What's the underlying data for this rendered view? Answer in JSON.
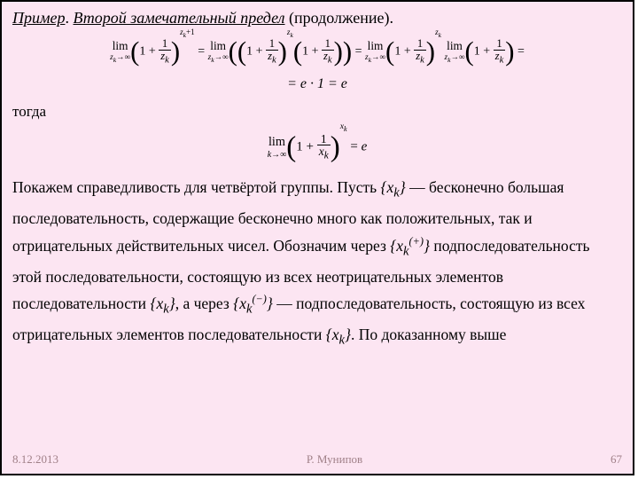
{
  "title": {
    "part1": "Пример",
    "dot": ". ",
    "part2": "Второй замечательный предел",
    "tail": " (продолжение)."
  },
  "eq_line1_html": "<span class='mathgroup'><span class='lim'><span class='top'>lim</span><span class='bot'><i>z<sub>k</sub></i>→∞</span></span><span class='paren-big'>(</span>1 + <span class='frac'><span class='num'>1</span><span class='den'><i>z<sub>k</sub></i></span></span><span class='paren-big'>)</span><span class='exp'><i>z<sub>k</sub></i>+1</span> = <span class='lim'><span class='top'>lim</span><span class='bot'><i>z<sub>k</sub></i>→∞</span></span><span class='paren-big'>(</span><span class='paren-big'>(</span>1 + <span class='frac'><span class='num'>1</span><span class='den'><i>z<sub>k</sub></i></span></span><span class='paren-big'>)</span><span class='exp'><i>z<sub>k</sub></i></span><span class='paren-big'>(</span>1 + <span class='frac'><span class='num'>1</span><span class='den'><i>z<sub>k</sub></i></span></span><span class='paren-big'>)</span><span class='paren-big'>)</span> = <span class='lim'><span class='top'>lim</span><span class='bot'><i>z<sub>k</sub></i>→∞</span></span><span class='paren-big'>(</span>1 + <span class='frac'><span class='num'>1</span><span class='den'><i>z<sub>k</sub></i></span></span><span class='paren-big'>)</span><span class='exp'><i>z<sub>k</sub></i></span> <span class='lim'><span class='top'>lim</span><span class='bot'><i>z<sub>k</sub></i>→∞</span></span><span class='paren-big'>(</span>1 + <span class='frac'><span class='num'>1</span><span class='den'><i>z<sub>k</sub></i></span></span><span class='paren-big'>)</span> =</span>",
  "eq_line2": "= e · 1 = e",
  "word_then": "тогда",
  "eq_line3_html": "<span class='mathgroup'><span class='lim'><span class='top'>lim</span><span class='bot'><i>k</i>→∞</span></span><span class='paren-big'>(</span>1 + <span class='frac'><span class='num'>1</span><span class='den'><i>x<sub>k</sub></i></span></span><span class='paren-big'>)</span><span class='exp'><i>x<sub>k</sub></i></span> = <i>e</i></span>",
  "body": {
    "t1": "Покажем справедливость для четвёртой группы. Пусть ",
    "seq_xk": "{x_k}",
    "t2": "   —   бесконечно большая последовательность, содержащие бесконечно много как положительных, так и отрицательных действительных чисел. Обозначим через ",
    "seq_xk_plus": "{x_k^(+)}",
    "t3": " подпоследовательность этой последовательности, состоящую из всех неотрицательных элементов последовательности ",
    "t4": ", а через ",
    "seq_xk_minus": "{x_k^(−)}",
    "t5": "   —   подпоследовательность, состоящую из всех отрицательных элементов последовательности ",
    "t6": ". По доказанному выше"
  },
  "footer": {
    "date": "8.12.2013",
    "author": "Р. Мунипов",
    "page": "67"
  },
  "colors": {
    "background": "#fce5f2",
    "border": "#000000",
    "text": "#000000",
    "footer": "#a08088"
  }
}
